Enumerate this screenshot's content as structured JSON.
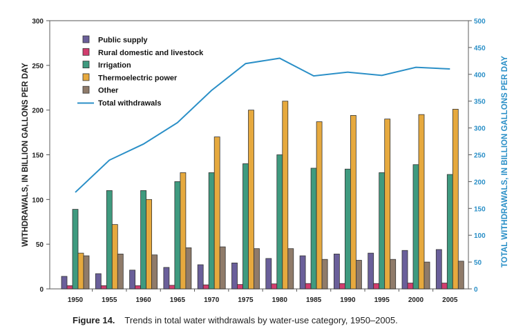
{
  "chart_data": {
    "type": "bar",
    "caption_label": "Figure 14.",
    "caption_text": "Trends in total water withdrawals by water-use category, 1950–2005.",
    "ylabel": "WITHDRAWALS, IN BILLION GALLONS PER DAY",
    "y2label": "TOTAL WITHDRAWALS, IN BILLION GALLONS PER DAY",
    "ylim": [
      0,
      300
    ],
    "y2lim": [
      0,
      500
    ],
    "yticks": [
      0,
      50,
      100,
      150,
      200,
      250,
      300
    ],
    "y2ticks": [
      0,
      50,
      100,
      150,
      200,
      250,
      300,
      350,
      400,
      450,
      500
    ],
    "grid": false,
    "legend_position": "top-left",
    "categories": [
      "1950",
      "1955",
      "1960",
      "1965",
      "1970",
      "1975",
      "1980",
      "1985",
      "1990",
      "1995",
      "2000",
      "2005"
    ],
    "series": [
      {
        "name": "Public supply",
        "color": "#6a5f9a",
        "values": [
          14,
          17,
          21,
          24,
          27,
          29,
          34,
          37,
          39,
          40,
          43,
          44
        ]
      },
      {
        "name": "Rural domestic and livestock",
        "color": "#d23d6e",
        "values": [
          3.6,
          3.6,
          3.6,
          4,
          4.5,
          4.9,
          5.6,
          6,
          6,
          6,
          6.5,
          6.5
        ]
      },
      {
        "name": "Irrigation",
        "color": "#3f9a7f",
        "values": [
          89,
          110,
          110,
          120,
          130,
          140,
          150,
          135,
          134,
          130,
          139,
          128
        ]
      },
      {
        "name": "Thermoelectric power",
        "color": "#e6a93e",
        "values": [
          40,
          72,
          100,
          130,
          170,
          200,
          210,
          187,
          194,
          190,
          195,
          201
        ]
      },
      {
        "name": "Other",
        "color": "#8f7b6a",
        "values": [
          37,
          39,
          38,
          46,
          47,
          45,
          45,
          33,
          32,
          33,
          30,
          31
        ]
      }
    ],
    "line_series": {
      "name": "Total withdrawals",
      "color": "#2a8fc7",
      "axis": "right",
      "values": [
        180,
        240,
        270,
        310,
        370,
        420,
        430,
        397,
        404,
        398,
        413,
        410
      ]
    }
  }
}
